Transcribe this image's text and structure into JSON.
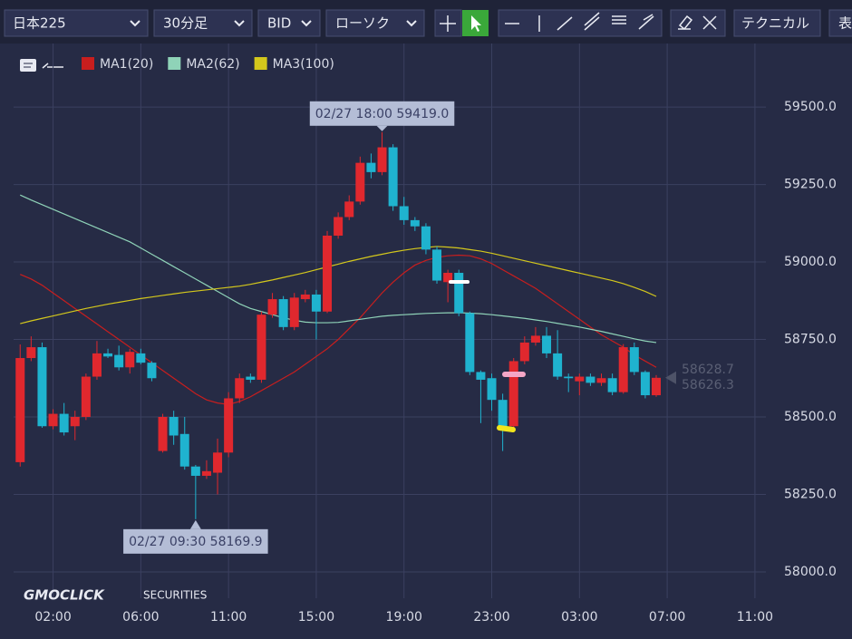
{
  "toolbar": {
    "symbol": "日本225",
    "timeframe": "30分足",
    "side": "BID",
    "chart_style": "ローソク",
    "technical": "テクニカル",
    "table": "表"
  },
  "watermark": {
    "brand": "GMOCLICK",
    "sub": "SECURITIES"
  },
  "chart_data": {
    "type": "candlestick",
    "up_color": "#e0282e",
    "down_color": "#1fb3cf",
    "open": [
      58354,
      58690,
      58725,
      58470,
      58510,
      58470,
      58500,
      58630,
      58705,
      58700,
      58660,
      58705,
      58675,
      58390,
      58500,
      58445,
      58340,
      58310,
      58320,
      58385,
      58560,
      58630,
      58620,
      58830,
      58880,
      58790,
      58880,
      58895,
      58840,
      59085,
      59145,
      59195,
      59320,
      59290,
      59370,
      59180,
      59135,
      59115,
      59040,
      58935,
      58965,
      58835,
      58645,
      58625,
      58555,
      58470,
      58680,
      58740,
      58762,
      58705,
      58630,
      58615,
      58630,
      58610,
      58625,
      58580,
      58725,
      58645,
      58570
    ],
    "high": [
      58734,
      58760,
      58740,
      58525,
      58545,
      58520,
      58640,
      58745,
      58720,
      58730,
      58720,
      58720,
      58680,
      58510,
      58520,
      58500,
      58345,
      58360,
      58430,
      58580,
      58640,
      58640,
      58840,
      58900,
      58890,
      58900,
      58910,
      58910,
      59100,
      59160,
      59215,
      59340,
      59350,
      59419,
      59380,
      59210,
      59145,
      59125,
      59050,
      58975,
      58975,
      58840,
      58650,
      58640,
      58575,
      58690,
      58760,
      58790,
      58790,
      58780,
      58640,
      58640,
      58640,
      58640,
      58640,
      58735,
      58740,
      58650,
      58635
    ],
    "low": [
      58340,
      58680,
      58465,
      58460,
      58440,
      58425,
      58490,
      58620,
      58690,
      58650,
      58640,
      58670,
      58615,
      58385,
      58410,
      58330,
      58169.9,
      58300,
      58250,
      58370,
      58545,
      58610,
      58610,
      58820,
      58780,
      58780,
      58870,
      58750,
      58835,
      59075,
      59135,
      59185,
      59270,
      59280,
      59165,
      59120,
      59100,
      59025,
      58930,
      58870,
      58825,
      58635,
      58480,
      58520,
      58390,
      58460,
      58670,
      58730,
      58690,
      58620,
      58580,
      58570,
      58600,
      58600,
      58570,
      58575,
      58635,
      58560,
      58565
    ],
    "close": [
      58690,
      58725,
      58470,
      58510,
      58450,
      58500,
      58630,
      58705,
      58695,
      58660,
      58710,
      58675,
      58625,
      58500,
      58440,
      58340,
      58310,
      58325,
      58385,
      58560,
      58625,
      58620,
      58830,
      58880,
      58790,
      58885,
      58895,
      58840,
      59085,
      59145,
      59195,
      59320,
      59290,
      59370,
      59180,
      59135,
      59115,
      59040,
      58940,
      58965,
      58835,
      58645,
      58620,
      58555,
      58470,
      58680,
      58740,
      58762,
      58705,
      58630,
      58625,
      58630,
      58610,
      58625,
      58580,
      58725,
      58645,
      58570,
      58626.3
    ],
    "series": [
      {
        "name": "MA1(20)",
        "color": "#c81e1e",
        "values": [
          58960,
          58945,
          58925,
          58900,
          58875,
          58850,
          58825,
          58800,
          58775,
          58750,
          58725,
          58700,
          58675,
          58650,
          58625,
          58600,
          58575,
          58555,
          58545,
          58540,
          58550,
          58565,
          58585,
          58605,
          58625,
          58645,
          58670,
          58695,
          58720,
          58750,
          58785,
          58820,
          58860,
          58900,
          58935,
          58965,
          58990,
          59005,
          59015,
          59020,
          59022,
          59020,
          59010,
          58995,
          58975,
          58955,
          58935,
          58915,
          58890,
          58865,
          58840,
          58815,
          58790,
          58765,
          58745,
          58725,
          58700,
          58680,
          58660
        ]
      },
      {
        "name": "MA2(62)",
        "color": "#8fd3b8",
        "values": [
          59216,
          59200,
          59185,
          59170,
          59155,
          59140,
          59125,
          59110,
          59095,
          59080,
          59065,
          59045,
          59025,
          59005,
          58985,
          58965,
          58945,
          58925,
          58905,
          58885,
          58865,
          58850,
          58840,
          58830,
          58820,
          58812,
          58806,
          58804,
          58804,
          58805,
          58810,
          58815,
          58820,
          58825,
          58828,
          58830,
          58832,
          58834,
          58835,
          58836,
          58836,
          58835,
          58833,
          58830,
          58826,
          58822,
          58818,
          58813,
          58808,
          58802,
          58796,
          58790,
          58783,
          58776,
          58768,
          58760,
          58752,
          58745,
          58740
        ]
      },
      {
        "name": "MA3(100)",
        "color": "#d4c81c",
        "values": [
          58801,
          58810,
          58818,
          58826,
          58834,
          58842,
          58850,
          58857,
          58864,
          58870,
          58876,
          58882,
          58887,
          58892,
          58897,
          58902,
          58906,
          58910,
          58914,
          58918,
          58922,
          58928,
          58935,
          58942,
          58950,
          58958,
          58966,
          58975,
          58984,
          58993,
          59002,
          59010,
          59018,
          59025,
          59032,
          59038,
          59043,
          59047,
          59050,
          59048,
          59045,
          59040,
          59035,
          59028,
          59020,
          59012,
          59004,
          58996,
          58988,
          58980,
          58972,
          58964,
          58956,
          58948,
          58940,
          58930,
          58918,
          58905,
          58889
        ]
      }
    ],
    "xlim": [
      -0.6,
      68
    ],
    "xticks": [
      {
        "value": 3,
        "label": "02:00"
      },
      {
        "value": 11,
        "label": "06:00"
      },
      {
        "value": 19,
        "label": "11:00"
      },
      {
        "value": 27,
        "label": "15:00"
      },
      {
        "value": 35,
        "label": "19:00"
      },
      {
        "value": 43,
        "label": "23:00"
      },
      {
        "value": 51,
        "label": "03:00"
      },
      {
        "value": 59,
        "label": "07:00"
      },
      {
        "value": 67,
        "label": "11:00"
      }
    ],
    "ylim": [
      57915,
      59705
    ],
    "yticks": [
      {
        "value": 58000,
        "label": "58000.0"
      },
      {
        "value": 58250,
        "label": "58250.0"
      },
      {
        "value": 58500,
        "label": "58500.0"
      },
      {
        "value": 58750,
        "label": "58750.0"
      },
      {
        "value": 59000,
        "label": "59000.0"
      },
      {
        "value": 59250,
        "label": "59250.0"
      },
      {
        "value": 59500,
        "label": "59500.0"
      }
    ],
    "grid": true,
    "annotations": [
      {
        "text": "02/27 18:00 59419.0",
        "x": 33,
        "y": 59419.0,
        "position": "above"
      },
      {
        "text": "02/27 09:30 58169.9",
        "x": 16,
        "y": 58169.9,
        "position": "below"
      }
    ],
    "last_prices": [
      58628.7,
      58626.3
    ]
  }
}
